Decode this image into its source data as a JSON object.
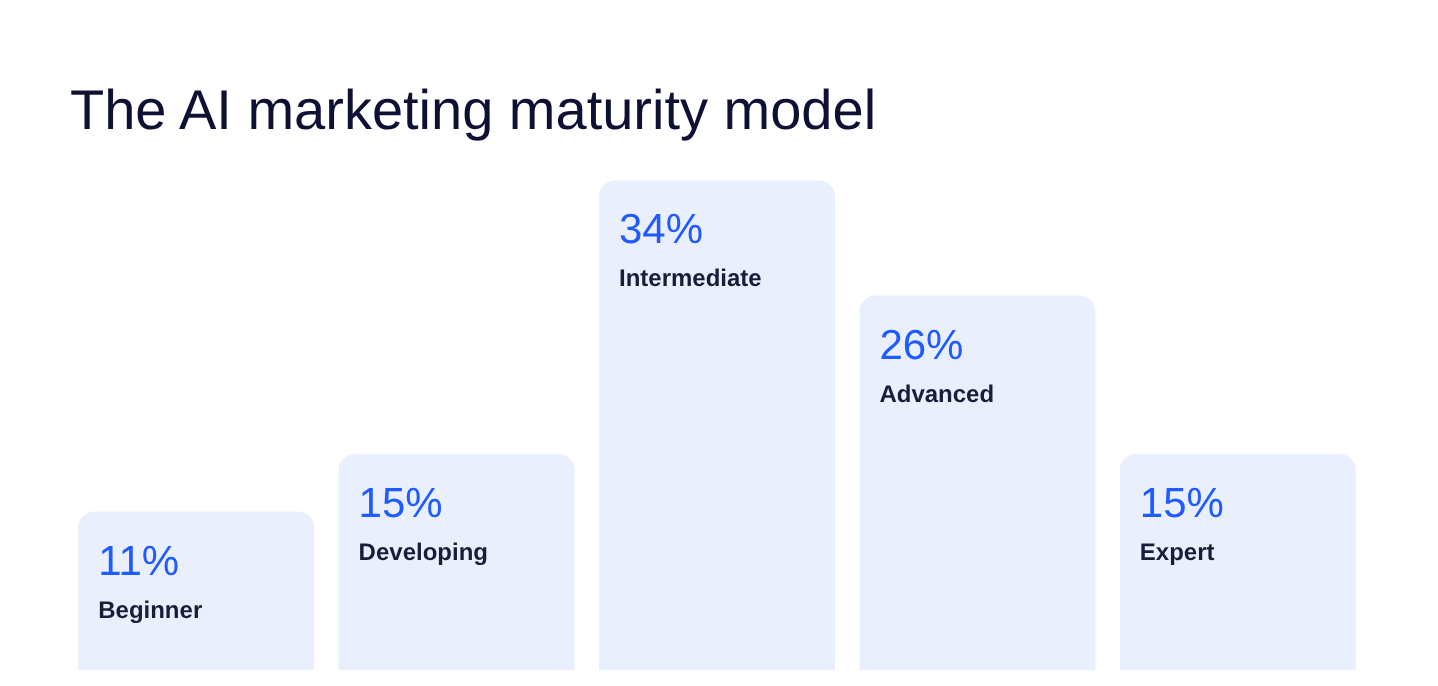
{
  "chart_data": {
    "type": "bar",
    "title": "The AI marketing maturity model",
    "categories": [
      "Beginner",
      "Developing",
      "Intermediate",
      "Advanced",
      "Expert"
    ],
    "values": [
      11,
      15,
      34,
      26,
      15
    ],
    "value_labels": [
      "11%",
      "15%",
      "34%",
      "26%",
      "15%"
    ],
    "color": "#e9effd"
  }
}
